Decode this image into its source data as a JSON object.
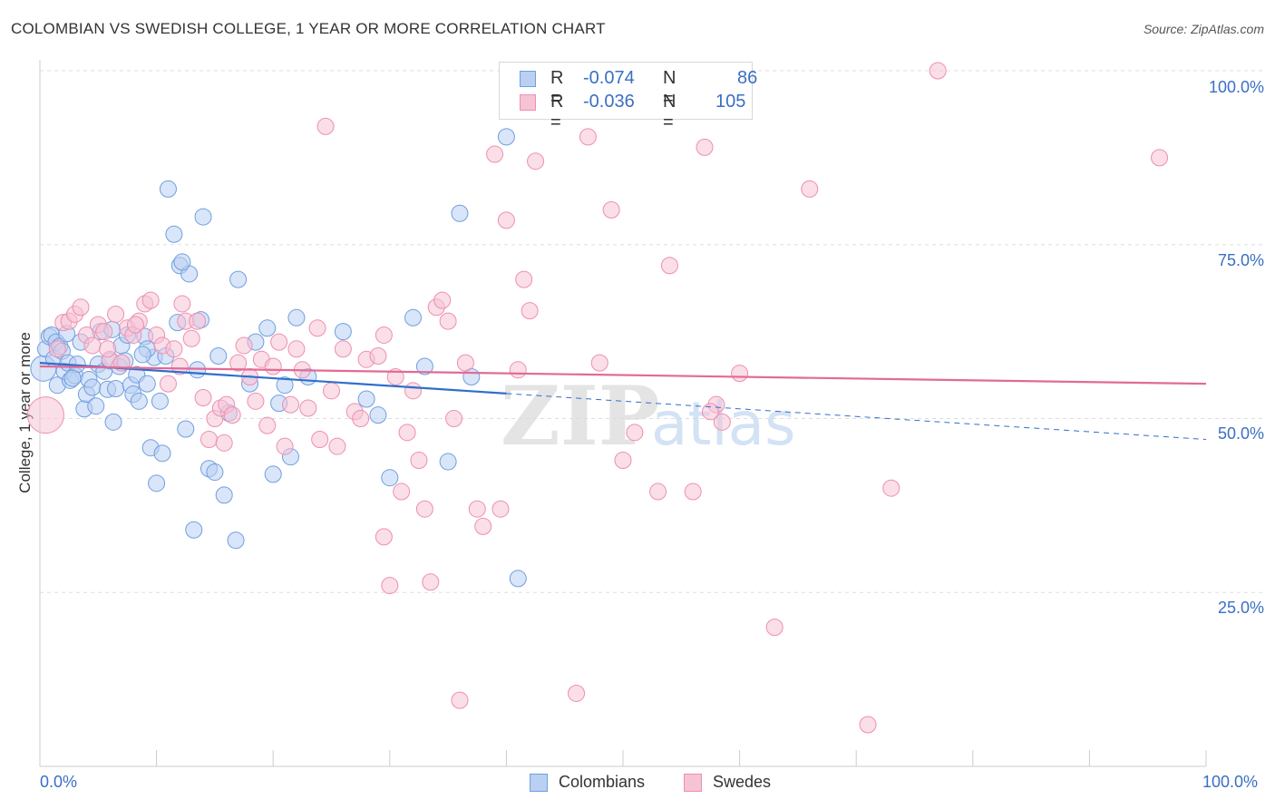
{
  "title": "COLOMBIAN VS SWEDISH COLLEGE, 1 YEAR OR MORE CORRELATION CHART",
  "source": "Source: ZipAtlas.com",
  "chart_data": {
    "type": "scatter",
    "title": "COLOMBIAN VS SWEDISH COLLEGE, 1 YEAR OR MORE CORRELATION CHART",
    "xlabel": "",
    "ylabel": "College, 1 year or more",
    "xlim": [
      0,
      100
    ],
    "ylim": [
      0,
      100
    ],
    "x_tick_labels": [
      "0.0%",
      "100.0%"
    ],
    "y_ticks": [
      25,
      50,
      75,
      100
    ],
    "y_tick_labels": [
      "25.0%",
      "50.0%",
      "75.0%",
      "100.0%"
    ],
    "grid": true,
    "legend_position": "top-center",
    "watermark": "ZIPatlas",
    "series": [
      {
        "name": "Colombians",
        "color": "#6f9fe0",
        "fill": "#b9d0f2",
        "line_color": "#2f6fcc",
        "R": "-0.074",
        "N": "86",
        "trend": {
          "x0": 0,
          "y0": 58.0,
          "x1": 40,
          "y1": 53.6,
          "dashed_to_x": 100,
          "dashed_to_y": 47.0
        },
        "points": [
          [
            0.3,
            57.2
          ],
          [
            0.5,
            60.0
          ],
          [
            0.8,
            61.8
          ],
          [
            1.0,
            62.0
          ],
          [
            1.2,
            58.6
          ],
          [
            1.4,
            61.0
          ],
          [
            1.5,
            54.8
          ],
          [
            1.7,
            60.4
          ],
          [
            1.9,
            59.7
          ],
          [
            2.1,
            56.8
          ],
          [
            2.3,
            62.2
          ],
          [
            2.4,
            58.0
          ],
          [
            2.6,
            55.5
          ],
          [
            3.0,
            56.2
          ],
          [
            3.2,
            57.8
          ],
          [
            3.5,
            61.0
          ],
          [
            3.8,
            51.4
          ],
          [
            4.0,
            53.5
          ],
          [
            4.2,
            55.6
          ],
          [
            4.5,
            54.5
          ],
          [
            5.0,
            57.8
          ],
          [
            5.2,
            62.5
          ],
          [
            5.5,
            56.8
          ],
          [
            5.8,
            54.2
          ],
          [
            6.0,
            58.3
          ],
          [
            6.3,
            49.5
          ],
          [
            6.5,
            54.3
          ],
          [
            6.8,
            57.5
          ],
          [
            7.0,
            60.5
          ],
          [
            7.3,
            58.3
          ],
          [
            7.8,
            54.8
          ],
          [
            8.0,
            53.5
          ],
          [
            8.3,
            56.3
          ],
          [
            8.5,
            52.5
          ],
          [
            9.0,
            61.8
          ],
          [
            9.2,
            55.0
          ],
          [
            9.5,
            45.8
          ],
          [
            9.8,
            58.8
          ],
          [
            10.0,
            40.7
          ],
          [
            10.3,
            52.5
          ],
          [
            10.5,
            45.0
          ],
          [
            11.0,
            83.0
          ],
          [
            11.5,
            76.5
          ],
          [
            12.0,
            72.0
          ],
          [
            12.5,
            48.5
          ],
          [
            12.8,
            70.8
          ],
          [
            13.2,
            34.0
          ],
          [
            13.5,
            57.0
          ],
          [
            14.0,
            79.0
          ],
          [
            14.5,
            42.8
          ],
          [
            15.0,
            42.3
          ],
          [
            15.3,
            59.0
          ],
          [
            15.8,
            39.0
          ],
          [
            16.2,
            50.8
          ],
          [
            16.8,
            32.5
          ],
          [
            17.0,
            70.0
          ],
          [
            18.0,
            55.0
          ],
          [
            18.5,
            61.0
          ],
          [
            19.5,
            63.0
          ],
          [
            20.0,
            42.0
          ],
          [
            20.5,
            52.2
          ],
          [
            21.0,
            54.8
          ],
          [
            21.5,
            44.5
          ],
          [
            22.0,
            64.5
          ],
          [
            23.0,
            56.0
          ],
          [
            26.0,
            62.5
          ],
          [
            28.0,
            52.8
          ],
          [
            29.0,
            50.5
          ],
          [
            30.0,
            41.5
          ],
          [
            32.0,
            64.5
          ],
          [
            33.0,
            57.5
          ],
          [
            35.0,
            43.8
          ],
          [
            36.0,
            79.5
          ],
          [
            37.0,
            56.0
          ],
          [
            40.0,
            90.5
          ],
          [
            41.0,
            27.0
          ],
          [
            7.5,
            62.0
          ],
          [
            11.8,
            63.8
          ],
          [
            13.8,
            64.2
          ],
          [
            9.2,
            60.0
          ],
          [
            2.8,
            55.8
          ],
          [
            4.8,
            51.8
          ],
          [
            6.2,
            62.8
          ],
          [
            12.2,
            72.5
          ],
          [
            8.8,
            59.2
          ],
          [
            10.8,
            59.0
          ]
        ]
      },
      {
        "name": "Swedes",
        "color": "#ee8fb0",
        "fill": "#f6c3d5",
        "line_color": "#e26a96",
        "R": "-0.036",
        "N": "105",
        "trend": {
          "x0": 0,
          "y0": 57.5,
          "x1": 100,
          "y1": 55.0
        },
        "points": [
          [
            0.5,
            50.5
          ],
          [
            1.5,
            60.0
          ],
          [
            2.0,
            63.8
          ],
          [
            2.5,
            64.0
          ],
          [
            3.0,
            65.0
          ],
          [
            3.5,
            66.0
          ],
          [
            4.0,
            62.0
          ],
          [
            4.5,
            60.5
          ],
          [
            5.0,
            63.5
          ],
          [
            5.5,
            62.5
          ],
          [
            6.0,
            58.5
          ],
          [
            6.5,
            65.0
          ],
          [
            7.0,
            58.0
          ],
          [
            7.5,
            63.0
          ],
          [
            8.0,
            62.0
          ],
          [
            8.5,
            64.0
          ],
          [
            9.0,
            66.5
          ],
          [
            9.5,
            67.0
          ],
          [
            10.0,
            62.0
          ],
          [
            10.5,
            60.5
          ],
          [
            11.0,
            55.0
          ],
          [
            11.5,
            60.0
          ],
          [
            12.0,
            57.5
          ],
          [
            12.5,
            64.0
          ],
          [
            13.0,
            61.5
          ],
          [
            13.5,
            64.0
          ],
          [
            14.0,
            53.0
          ],
          [
            14.5,
            47.0
          ],
          [
            15.0,
            50.0
          ],
          [
            15.5,
            51.5
          ],
          [
            16.0,
            52.0
          ],
          [
            16.5,
            50.5
          ],
          [
            17.0,
            58.0
          ],
          [
            17.5,
            60.5
          ],
          [
            18.0,
            56.0
          ],
          [
            18.5,
            52.5
          ],
          [
            19.0,
            58.5
          ],
          [
            19.5,
            49.0
          ],
          [
            20.0,
            57.5
          ],
          [
            20.5,
            61.0
          ],
          [
            21.0,
            46.0
          ],
          [
            21.5,
            52.0
          ],
          [
            22.0,
            60.0
          ],
          [
            22.5,
            57.0
          ],
          [
            23.0,
            51.5
          ],
          [
            24.0,
            47.0
          ],
          [
            24.5,
            92.0
          ],
          [
            25.0,
            54.0
          ],
          [
            25.5,
            46.0
          ],
          [
            26.0,
            60.0
          ],
          [
            27.0,
            51.0
          ],
          [
            27.5,
            50.0
          ],
          [
            28.0,
            58.5
          ],
          [
            29.0,
            59.0
          ],
          [
            29.5,
            33.0
          ],
          [
            30.0,
            26.0
          ],
          [
            31.0,
            39.5
          ],
          [
            31.5,
            48.0
          ],
          [
            32.0,
            54.0
          ],
          [
            32.5,
            44.0
          ],
          [
            33.0,
            37.0
          ],
          [
            33.5,
            26.5
          ],
          [
            34.0,
            66.0
          ],
          [
            35.0,
            64.0
          ],
          [
            35.5,
            50.0
          ],
          [
            36.0,
            9.5
          ],
          [
            36.5,
            58.0
          ],
          [
            37.5,
            37.0
          ],
          [
            38.0,
            34.5
          ],
          [
            39.0,
            88.0
          ],
          [
            39.5,
            37.0
          ],
          [
            40.0,
            78.5
          ],
          [
            41.0,
            57.0
          ],
          [
            42.0,
            65.5
          ],
          [
            42.5,
            87.0
          ],
          [
            45.0,
            100.0
          ],
          [
            46.0,
            10.5
          ],
          [
            47.0,
            90.5
          ],
          [
            48.0,
            58.0
          ],
          [
            49.0,
            80.0
          ],
          [
            50.0,
            44.0
          ],
          [
            51.0,
            48.0
          ],
          [
            53.0,
            39.5
          ],
          [
            54.0,
            72.0
          ],
          [
            56.0,
            39.5
          ],
          [
            57.0,
            89.0
          ],
          [
            58.0,
            52.0
          ],
          [
            58.5,
            49.5
          ],
          [
            60.0,
            56.5
          ],
          [
            63.0,
            20.0
          ],
          [
            66.0,
            83.0
          ],
          [
            71.0,
            6.0
          ],
          [
            73.0,
            40.0
          ],
          [
            77.0,
            100.0
          ],
          [
            96.0,
            87.5
          ],
          [
            12.2,
            66.5
          ],
          [
            8.2,
            63.5
          ],
          [
            15.8,
            46.5
          ],
          [
            29.5,
            62.0
          ],
          [
            5.8,
            60.0
          ],
          [
            23.8,
            63.0
          ],
          [
            34.5,
            67.0
          ],
          [
            41.5,
            70.0
          ],
          [
            57.5,
            51.0
          ],
          [
            30.5,
            56.0
          ]
        ]
      }
    ]
  },
  "legend": {
    "rows": [
      {
        "r_label": "R =",
        "r_value": "-0.074",
        "n_label": "N =",
        "n_value": "86"
      },
      {
        "r_label": "R =",
        "r_value": "-0.036",
        "n_label": "N =",
        "n_value": "105"
      }
    ]
  },
  "bottom_legend": {
    "colombians": "Colombians",
    "swedes": "Swedes"
  }
}
